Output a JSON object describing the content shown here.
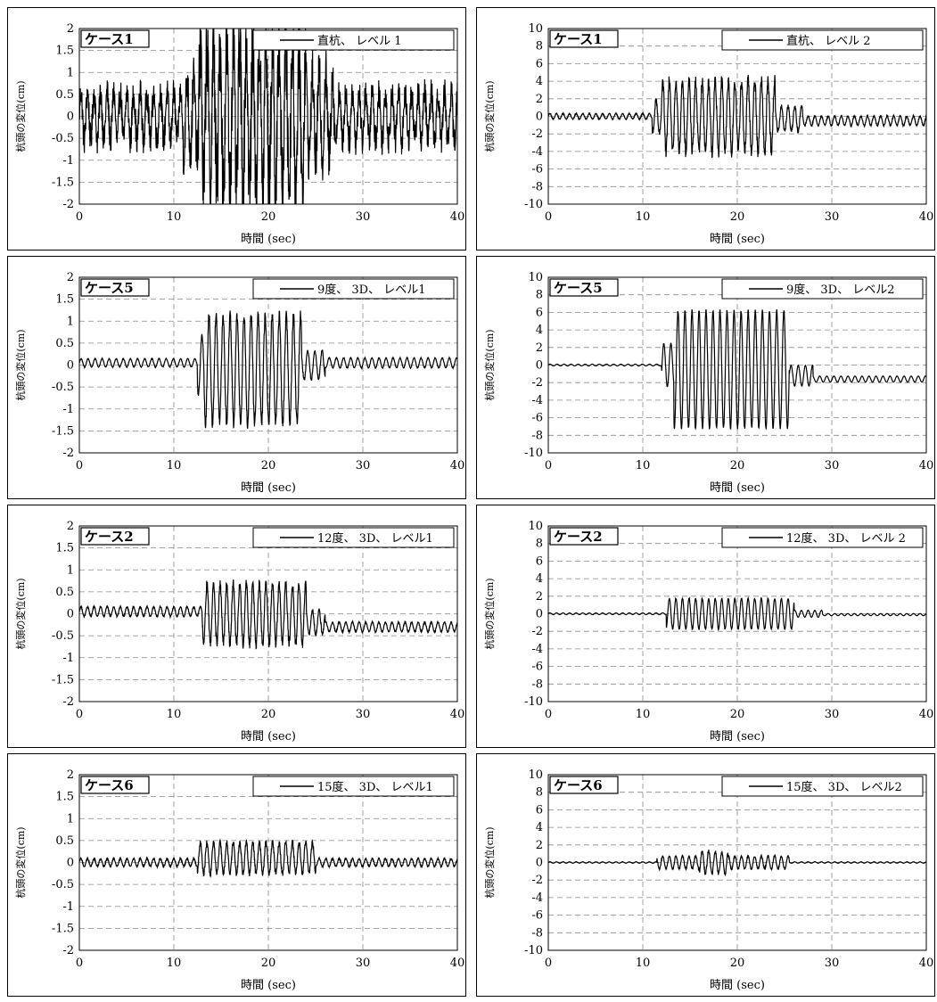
{
  "chart_data": [
    {
      "type": "line",
      "case_label": "ケース1",
      "series": [
        {
          "name": "直杭、 レベル 1",
          "duration": 40,
          "segments": [
            [
              0,
              11,
              0.0,
              0.75
            ],
            [
              11,
              12.6,
              0.0,
              1.2
            ],
            [
              12.6,
              24,
              0.0,
              2.3
            ],
            [
              24,
              27,
              0.0,
              1.3
            ],
            [
              27,
              40,
              0.0,
              0.75
            ]
          ],
          "period": 0.7,
          "noise": 0.9
        }
      ],
      "xlabel": "時間 (sec)",
      "ylabel": "杭頭の変位(cm)",
      "xlim": [
        0,
        40
      ],
      "ylim": [
        -2,
        2
      ],
      "x_ticks": [
        0,
        10,
        20,
        30,
        40
      ],
      "y_ticks": [
        "2",
        "1.5",
        "1",
        "0.5",
        "0",
        "-0.5",
        "-1",
        "-1.5",
        "-2"
      ],
      "grid": true,
      "legend": "top-right"
    },
    {
      "type": "line",
      "case_label": "ケース1",
      "series": [
        {
          "name": "直杭、 レベル 2",
          "duration": 40,
          "segments": [
            [
              0,
              11,
              0.0,
              0.35
            ],
            [
              11,
              12,
              0.0,
              2.0
            ],
            [
              12,
              24,
              0.0,
              4.5
            ],
            [
              24,
              27,
              -0.3,
              1.6
            ],
            [
              27,
              40,
              -0.5,
              0.6
            ]
          ],
          "period": 0.7,
          "noise": 0.35
        }
      ],
      "xlabel": "時間 (sec)",
      "ylabel": "杭頭の変位(cm)",
      "xlim": [
        0,
        40
      ],
      "ylim": [
        -10,
        10
      ],
      "x_ticks": [
        0,
        10,
        20,
        30,
        40
      ],
      "y_ticks": [
        "10",
        "8",
        "6",
        "4",
        "2",
        "0",
        "-2",
        "-4",
        "-6",
        "-8",
        "-10"
      ],
      "grid": true,
      "legend": "top-right"
    },
    {
      "type": "line",
      "case_label": "ケース5",
      "series": [
        {
          "name": "9度、 3D、 レベル1",
          "duration": 40,
          "segments": [
            [
              0,
              12.5,
              0.05,
              0.1
            ],
            [
              12.5,
              13.2,
              0.0,
              0.7
            ],
            [
              13.2,
              23.5,
              -0.1,
              1.3
            ],
            [
              23.5,
              26,
              0.0,
              0.35
            ],
            [
              26,
              40,
              0.05,
              0.12
            ]
          ],
          "period": 0.75,
          "noise": 0.2
        }
      ],
      "xlabel": "時間 (sec)",
      "ylabel": "杭頭の変位(cm)",
      "xlim": [
        0,
        40
      ],
      "ylim": [
        -2,
        2
      ],
      "x_ticks": [
        0,
        10,
        20,
        30,
        40
      ],
      "y_ticks": [
        "2",
        "1.5",
        "1",
        "0.5",
        "0",
        "-0.5",
        "-1",
        "-1.5",
        "-2"
      ],
      "grid": true,
      "legend": "top-right"
    },
    {
      "type": "line",
      "case_label": "ケース5",
      "series": [
        {
          "name": "9度、 3D、 レベル2",
          "duration": 40,
          "segments": [
            [
              0,
              12,
              0.0,
              0.1
            ],
            [
              12,
              13.3,
              0.0,
              2.5
            ],
            [
              13.3,
              25.5,
              -0.5,
              6.8
            ],
            [
              25.5,
              28,
              -1.2,
              1.2
            ],
            [
              28,
              40,
              -1.6,
              0.35
            ]
          ],
          "period": 0.75,
          "noise": 0.05
        }
      ],
      "xlabel": "時間 (sec)",
      "ylabel": "杭頭の変位(cm)",
      "xlim": [
        0,
        40
      ],
      "ylim": [
        -10,
        10
      ],
      "x_ticks": [
        0,
        10,
        20,
        30,
        40
      ],
      "y_ticks": [
        "10",
        "8",
        "6",
        "4",
        "2",
        "0",
        "-2",
        "-4",
        "-6",
        "-8",
        "-10"
      ],
      "grid": true,
      "legend": "top-right"
    },
    {
      "type": "line",
      "case_label": "ケース2",
      "series": [
        {
          "name": "12度、 3D、 レベル1",
          "duration": 40,
          "segments": [
            [
              0,
              13,
              0.05,
              0.12
            ],
            [
              13,
              24,
              0.0,
              0.75
            ],
            [
              24,
              26,
              -0.2,
              0.3
            ],
            [
              26,
              40,
              -0.3,
              0.12
            ]
          ],
          "period": 0.7,
          "noise": 0.3
        }
      ],
      "xlabel": "時間 (sec)",
      "ylabel": "杭頭の変位(cm)",
      "xlim": [
        0,
        40
      ],
      "ylim": [
        -2,
        2
      ],
      "x_ticks": [
        0,
        10,
        20,
        30,
        40
      ],
      "y_ticks": [
        "2",
        "1.5",
        "1",
        "0.5",
        "0",
        "-0.5",
        "-1",
        "-1.5",
        "-2"
      ],
      "grid": true,
      "legend": "top-right"
    },
    {
      "type": "line",
      "case_label": "ケース2",
      "series": [
        {
          "name": "12度、 3D、 レベル 2",
          "duration": 40,
          "segments": [
            [
              0,
              12.5,
              0.0,
              0.1
            ],
            [
              12.5,
              26,
              0.0,
              1.8
            ],
            [
              26,
              29,
              0.0,
              0.4
            ],
            [
              29,
              40,
              -0.1,
              0.12
            ]
          ],
          "period": 0.7,
          "noise": 0.1
        }
      ],
      "xlabel": "時間 (sec)",
      "ylabel": "杭頭の変位(cm)",
      "xlim": [
        0,
        40
      ],
      "ylim": [
        -10,
        10
      ],
      "x_ticks": [
        0,
        10,
        20,
        30,
        40
      ],
      "y_ticks": [
        "10",
        "8",
        "6",
        "4",
        "2",
        "0",
        "-2",
        "-4",
        "-6",
        "-8",
        "-10"
      ],
      "grid": true,
      "legend": "top-right"
    },
    {
      "type": "line",
      "case_label": "ケース6",
      "series": [
        {
          "name": "15度、 3D、 レベル1",
          "duration": 40,
          "segments": [
            [
              0,
              12.5,
              0.0,
              0.1
            ],
            [
              12.5,
              25,
              0.1,
              0.4
            ],
            [
              25,
              40,
              0.0,
              0.1
            ]
          ],
          "period": 0.7,
          "noise": 0.35
        }
      ],
      "xlabel": "時間 (sec)",
      "ylabel": "杭頭の変位(cm)",
      "xlim": [
        0,
        40
      ],
      "ylim": [
        -2,
        2
      ],
      "x_ticks": [
        0,
        10,
        20,
        30,
        40
      ],
      "y_ticks": [
        "2",
        "1.5",
        "1",
        "0.5",
        "0",
        "-0.5",
        "-1",
        "-1.5",
        "-2"
      ],
      "grid": true,
      "legend": "top-right"
    },
    {
      "type": "line",
      "case_label": "ケース6",
      "series": [
        {
          "name": "15度、 3D、 レベル2",
          "duration": 40,
          "segments": [
            [
              0,
              11.5,
              0.0,
              0.08
            ],
            [
              11.5,
              16,
              0.0,
              0.8
            ],
            [
              16,
              19,
              0.0,
              1.4
            ],
            [
              19,
              25.5,
              0.0,
              0.8
            ],
            [
              25.5,
              40,
              0.0,
              0.08
            ]
          ],
          "period": 0.7,
          "noise": 0.3
        }
      ],
      "xlabel": "時間 (sec)",
      "ylabel": "杭頭の変位(cm)",
      "xlim": [
        0,
        40
      ],
      "ylim": [
        -10,
        10
      ],
      "x_ticks": [
        0,
        10,
        20,
        30,
        40
      ],
      "y_ticks": [
        "10",
        "8",
        "6",
        "4",
        "2",
        "0",
        "-2",
        "-4",
        "-6",
        "-8",
        "-10"
      ],
      "grid": true,
      "legend": "top-right"
    }
  ]
}
